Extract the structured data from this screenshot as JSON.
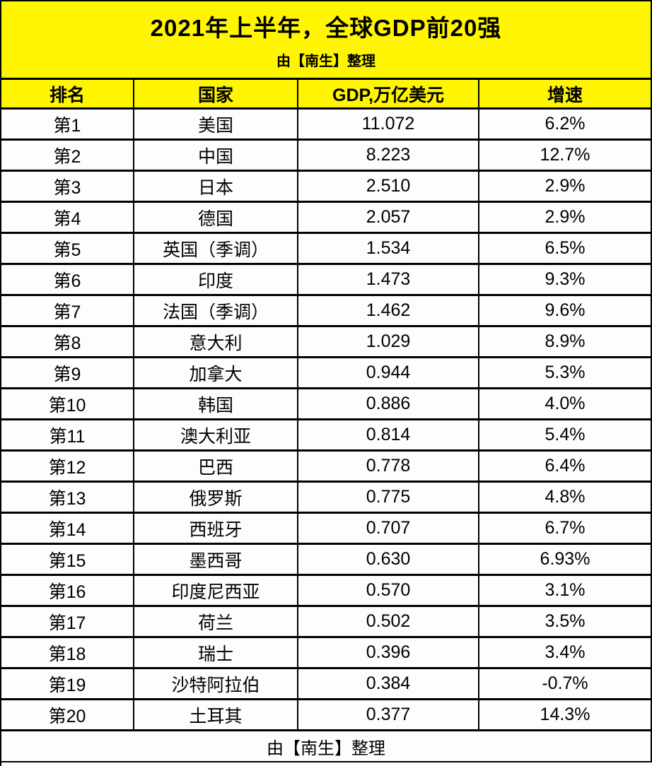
{
  "colors": {
    "header_bg": "#FFF500",
    "border": "#000000",
    "text": "#000000",
    "row_bg": "#FDFDFD"
  },
  "chart_data": {
    "type": "table",
    "title": "2021年上半年，全球GDP前20强",
    "subtitle": "由【南生】整理",
    "footer": "由【南生】整理",
    "columns": [
      "排名",
      "国家",
      "GDP,万亿美元",
      "增速"
    ],
    "rows": [
      [
        "第1",
        "美国",
        "11.072",
        "6.2%"
      ],
      [
        "第2",
        "中国",
        "8.223",
        "12.7%"
      ],
      [
        "第3",
        "日本",
        "2.510",
        "2.9%"
      ],
      [
        "第4",
        "德国",
        "2.057",
        "2.9%"
      ],
      [
        "第5",
        "英国（季调）",
        "1.534",
        "6.5%"
      ],
      [
        "第6",
        "印度",
        "1.473",
        "9.3%"
      ],
      [
        "第7",
        "法国（季调）",
        "1.462",
        "9.6%"
      ],
      [
        "第8",
        "意大利",
        "1.029",
        "8.9%"
      ],
      [
        "第9",
        "加拿大",
        "0.944",
        "5.3%"
      ],
      [
        "第10",
        "韩国",
        "0.886",
        "4.0%"
      ],
      [
        "第11",
        "澳大利亚",
        "0.814",
        "5.4%"
      ],
      [
        "第12",
        "巴西",
        "0.778",
        "6.4%"
      ],
      [
        "第13",
        "俄罗斯",
        "0.775",
        "4.8%"
      ],
      [
        "第14",
        "西班牙",
        "0.707",
        "6.7%"
      ],
      [
        "第15",
        "墨西哥",
        "0.630",
        "6.93%"
      ],
      [
        "第16",
        "印度尼西亚",
        "0.570",
        "3.1%"
      ],
      [
        "第17",
        "荷兰",
        "0.502",
        "3.5%"
      ],
      [
        "第18",
        "瑞士",
        "0.396",
        "3.4%"
      ],
      [
        "第19",
        "沙特阿拉伯",
        "0.384",
        "-0.7%"
      ],
      [
        "第20",
        "土耳其",
        "0.377",
        "14.3%"
      ]
    ]
  }
}
